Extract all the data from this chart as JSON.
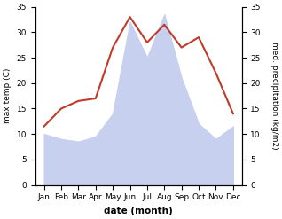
{
  "months": [
    "Jan",
    "Feb",
    "Mar",
    "Apr",
    "May",
    "Jun",
    "Jul",
    "Aug",
    "Sep",
    "Oct",
    "Nov",
    "Dec"
  ],
  "temperature": [
    11.5,
    15.0,
    16.5,
    17.0,
    27.0,
    33.0,
    28.0,
    31.5,
    27.0,
    29.0,
    22.0,
    14.0
  ],
  "precipitation": [
    10.0,
    9.0,
    8.5,
    9.5,
    14.0,
    32.0,
    25.0,
    33.5,
    21.0,
    12.0,
    9.0,
    11.5
  ],
  "temp_color": "#c0392b",
  "precip_fill_color": "#c8d0f0",
  "background_color": "#ffffff",
  "ylim_left": [
    0,
    35
  ],
  "ylim_right": [
    0,
    35
  ],
  "ylabel_left": "max temp (C)",
  "ylabel_right": "med. precipitation (kg/m2)",
  "xlabel": "date (month)",
  "yticks": [
    0,
    5,
    10,
    15,
    20,
    25,
    30,
    35
  ]
}
